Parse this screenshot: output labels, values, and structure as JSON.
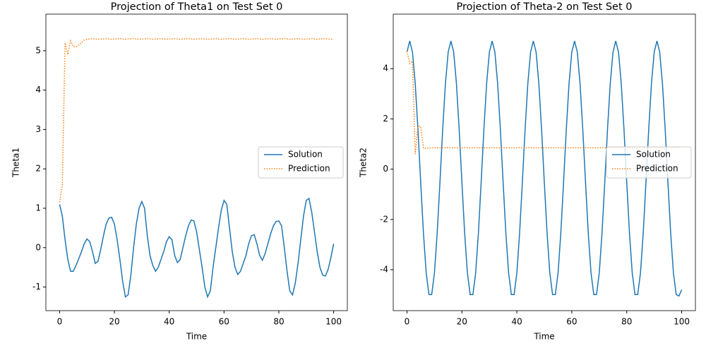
{
  "chart_data": [
    {
      "type": "line",
      "title": "Projection of Theta1 on Test Set 0",
      "xlabel": "Time",
      "ylabel": "Theta1",
      "x": [
        0,
        1,
        2,
        3,
        4,
        5,
        6,
        7,
        8,
        9,
        10,
        11,
        12,
        13,
        14,
        15,
        16,
        17,
        18,
        19,
        20,
        21,
        22,
        23,
        24,
        25,
        26,
        27,
        28,
        29,
        30,
        31,
        32,
        33,
        34,
        35,
        36,
        37,
        38,
        39,
        40,
        41,
        42,
        43,
        44,
        45,
        46,
        47,
        48,
        49,
        50,
        51,
        52,
        53,
        54,
        55,
        56,
        57,
        58,
        59,
        60,
        61,
        62,
        63,
        64,
        65,
        66,
        67,
        68,
        69,
        70,
        71,
        72,
        73,
        74,
        75,
        76,
        77,
        78,
        79,
        80,
        81,
        82,
        83,
        84,
        85,
        86,
        87,
        88,
        89,
        90,
        91,
        92,
        93,
        94,
        95,
        96,
        97,
        98,
        99,
        100
      ],
      "series": [
        {
          "name": "Solution",
          "color": "#1f77b4",
          "linestyle": "solid",
          "values": [
            1.1,
            0.8,
            0.2,
            -0.3,
            -0.6,
            -0.6,
            -0.45,
            -0.28,
            -0.1,
            0.1,
            0.22,
            0.15,
            -0.1,
            -0.4,
            -0.35,
            -0.05,
            0.3,
            0.6,
            0.75,
            0.77,
            0.6,
            0.2,
            -0.3,
            -0.85,
            -1.25,
            -1.2,
            -0.7,
            0.0,
            0.6,
            1.0,
            1.17,
            1.0,
            0.3,
            -0.2,
            -0.45,
            -0.6,
            -0.5,
            -0.3,
            -0.1,
            0.15,
            0.28,
            0.2,
            -0.2,
            -0.38,
            -0.3,
            0.0,
            0.3,
            0.55,
            0.7,
            0.68,
            0.4,
            -0.05,
            -0.5,
            -1.0,
            -1.25,
            -1.1,
            -0.5,
            0.0,
            0.5,
            0.95,
            1.2,
            1.1,
            0.5,
            -0.1,
            -0.5,
            -0.68,
            -0.6,
            -0.4,
            -0.2,
            0.1,
            0.3,
            0.33,
            0.1,
            -0.2,
            -0.32,
            -0.15,
            0.1,
            0.35,
            0.55,
            0.66,
            0.68,
            0.55,
            0.0,
            -0.6,
            -1.1,
            -1.2,
            -0.9,
            -0.4,
            0.2,
            0.8,
            1.2,
            1.25,
            0.9,
            0.4,
            -0.1,
            -0.5,
            -0.7,
            -0.72,
            -0.55,
            -0.25,
            0.1
          ]
        },
        {
          "name": "Prediction",
          "color": "#ff7f0e",
          "linestyle": "dotted",
          "values": [
            1.15,
            1.6,
            5.2,
            4.9,
            5.25,
            5.1,
            5.1,
            5.15,
            5.2,
            5.27,
            5.29,
            5.3,
            5.31,
            5.3,
            5.29,
            5.3,
            5.3,
            5.31,
            5.3,
            5.29,
            5.3,
            5.3,
            5.31,
            5.3,
            5.29,
            5.3,
            5.3,
            5.31,
            5.3,
            5.29,
            5.3,
            5.3,
            5.31,
            5.3,
            5.29,
            5.3,
            5.3,
            5.31,
            5.3,
            5.29,
            5.3,
            5.3,
            5.31,
            5.3,
            5.29,
            5.3,
            5.3,
            5.31,
            5.3,
            5.29,
            5.3,
            5.3,
            5.31,
            5.3,
            5.29,
            5.3,
            5.3,
            5.31,
            5.3,
            5.29,
            5.3,
            5.3,
            5.31,
            5.3,
            5.29,
            5.3,
            5.3,
            5.31,
            5.3,
            5.29,
            5.3,
            5.3,
            5.31,
            5.3,
            5.29,
            5.3,
            5.3,
            5.31,
            5.3,
            5.29,
            5.3,
            5.3,
            5.31,
            5.3,
            5.29,
            5.3,
            5.3,
            5.31,
            5.3,
            5.29,
            5.3,
            5.3,
            5.31,
            5.3,
            5.29,
            5.3,
            5.3,
            5.31,
            5.3,
            5.29,
            5.3
          ]
        }
      ],
      "xlim": [
        -5,
        105
      ],
      "xticks": [
        0,
        20,
        40,
        60,
        80,
        100
      ],
      "ylim": [
        -1.6,
        5.93
      ],
      "yticks": [
        -1,
        0,
        1,
        2,
        3,
        4,
        5
      ],
      "legend": "center right"
    },
    {
      "type": "line",
      "title": "Projection of Theta-2 on Test Set 0",
      "xlabel": "Time",
      "ylabel": "Theta2",
      "x": [
        0,
        1,
        2,
        3,
        4,
        5,
        6,
        7,
        8,
        9,
        10,
        11,
        12,
        13,
        14,
        15,
        16,
        17,
        18,
        19,
        20,
        21,
        22,
        23,
        24,
        25,
        26,
        27,
        28,
        29,
        30,
        31,
        32,
        33,
        34,
        35,
        36,
        37,
        38,
        39,
        40,
        41,
        42,
        43,
        44,
        45,
        46,
        47,
        48,
        49,
        50,
        51,
        52,
        53,
        54,
        55,
        56,
        57,
        58,
        59,
        60,
        61,
        62,
        63,
        64,
        65,
        66,
        67,
        68,
        69,
        70,
        71,
        72,
        73,
        74,
        75,
        76,
        77,
        78,
        79,
        80,
        81,
        82,
        83,
        84,
        85,
        86,
        87,
        88,
        89,
        90,
        91,
        92,
        93,
        94,
        95,
        96,
        97,
        98,
        99,
        100
      ],
      "series": [
        {
          "name": "Solution",
          "color": "#1f77b4",
          "linestyle": "solid",
          "values": [
            4.66,
            5.1,
            4.66,
            3.41,
            1.58,
            -0.53,
            -2.55,
            -4.13,
            -4.99,
            -4.99,
            -4.13,
            -2.55,
            -0.53,
            1.58,
            3.41,
            4.66,
            5.1,
            4.66,
            3.41,
            1.58,
            -0.53,
            -2.55,
            -4.13,
            -4.99,
            -4.99,
            -4.13,
            -2.55,
            -0.53,
            1.58,
            3.41,
            4.66,
            5.1,
            4.66,
            3.41,
            1.58,
            -0.53,
            -2.55,
            -4.13,
            -4.99,
            -4.99,
            -4.13,
            -2.55,
            -0.53,
            1.58,
            3.41,
            4.66,
            5.1,
            4.66,
            3.41,
            1.58,
            -0.53,
            -2.55,
            -4.13,
            -4.99,
            -4.99,
            -4.13,
            -2.55,
            -0.53,
            1.58,
            3.41,
            4.66,
            5.1,
            4.66,
            3.41,
            1.58,
            -0.53,
            -2.55,
            -4.13,
            -4.99,
            -4.99,
            -4.13,
            -2.55,
            -0.53,
            1.58,
            3.41,
            4.66,
            5.1,
            4.66,
            3.41,
            1.58,
            -0.53,
            -2.55,
            -4.13,
            -4.99,
            -4.99,
            -4.13,
            -2.55,
            -0.53,
            1.58,
            3.41,
            4.66,
            5.1,
            4.66,
            3.41,
            1.58,
            -0.53,
            -2.55,
            -4.13,
            -4.99,
            -5.05,
            -4.8
          ]
        },
        {
          "name": "Prediction",
          "color": "#ff7f0e",
          "linestyle": "dotted",
          "values": [
            4.7,
            4.2,
            4.3,
            0.6,
            1.7,
            1.7,
            0.85,
            0.82,
            0.84,
            0.85,
            0.85,
            0.86,
            0.85,
            0.85,
            0.85,
            0.86,
            0.85,
            0.85,
            0.85,
            0.85,
            0.85,
            0.86,
            0.85,
            0.85,
            0.85,
            0.86,
            0.85,
            0.85,
            0.85,
            0.85,
            0.85,
            0.86,
            0.85,
            0.85,
            0.85,
            0.86,
            0.85,
            0.85,
            0.85,
            0.85,
            0.85,
            0.86,
            0.85,
            0.85,
            0.85,
            0.86,
            0.85,
            0.85,
            0.85,
            0.85,
            0.85,
            0.86,
            0.85,
            0.85,
            0.85,
            0.86,
            0.85,
            0.85,
            0.85,
            0.85,
            0.85,
            0.86,
            0.85,
            0.85,
            0.85,
            0.86,
            0.85,
            0.85,
            0.85,
            0.85,
            0.85,
            0.86,
            0.85,
            0.85,
            0.85,
            0.86,
            0.85,
            0.85,
            0.85,
            0.85,
            0.85,
            0.86,
            0.85,
            0.85,
            0.85,
            0.86,
            0.85,
            0.85,
            0.85,
            0.85,
            0.85,
            0.86,
            0.85,
            0.85,
            0.85,
            0.86,
            0.85,
            0.85,
            0.85,
            0.85,
            0.85
          ]
        }
      ],
      "xlim": [
        -5,
        105
      ],
      "xticks": [
        0,
        20,
        40,
        60,
        80,
        100
      ],
      "ylim": [
        -5.63,
        6.17
      ],
      "yticks": [
        -4,
        -2,
        0,
        2,
        4
      ],
      "legend": "center right"
    }
  ]
}
